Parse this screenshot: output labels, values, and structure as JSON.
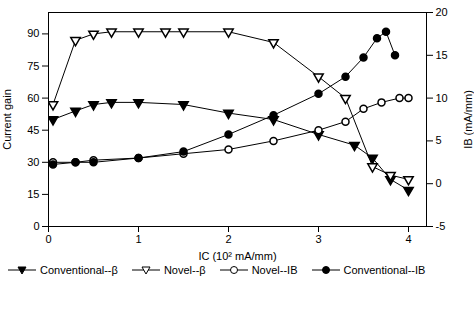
{
  "chart_data": {
    "type": "line",
    "xlabel": "IC (10² mA/mm)",
    "ylabel": "Current gain",
    "y2label": "IB (mA/mm)",
    "xlim": [
      0,
      4.2
    ],
    "xticks": [
      0,
      1,
      2,
      3,
      4
    ],
    "ylim": [
      0,
      100
    ],
    "yticks": [
      0,
      15,
      30,
      45,
      60,
      75,
      90
    ],
    "y2lim": [
      -5,
      20
    ],
    "y2ticks": [
      -5,
      0,
      5,
      10,
      15,
      20
    ],
    "grid": false,
    "legend": "lower left",
    "series": [
      {
        "name": "Conventional--β",
        "color": "black",
        "marker": "filled-triangle-down",
        "x": [
          0.05,
          0.3,
          0.5,
          0.7,
          1.0,
          1.5,
          2.0,
          2.5,
          3.0,
          3.4,
          3.6,
          3.8,
          4.0
        ],
        "values": [
          50,
          54,
          57,
          58,
          58,
          57,
          53,
          50,
          43,
          38,
          32,
          22,
          17
        ]
      },
      {
        "name": "Novel--β",
        "color": "black",
        "marker": "open-triangle-down",
        "x": [
          0.05,
          0.3,
          0.5,
          0.7,
          1.0,
          1.3,
          1.5,
          2.0,
          2.5,
          3.0,
          3.3,
          3.6,
          3.8,
          4.0
        ],
        "values": [
          57,
          87,
          90,
          91,
          91,
          91,
          91,
          91,
          86,
          70,
          60,
          28,
          24,
          22
        ]
      },
      {
        "name": "Novel--IB",
        "color": "black",
        "marker": "open-circle",
        "x": [
          0.05,
          0.3,
          0.5,
          1.0,
          1.5,
          2.0,
          2.5,
          3.0,
          3.3,
          3.5,
          3.7,
          3.9,
          4.0
        ],
        "values": [
          30,
          30,
          31,
          32,
          34,
          36,
          40,
          45,
          49,
          55,
          58,
          60,
          60
        ]
      },
      {
        "name": "Conventional--IB",
        "color": "black",
        "marker": "filled-circle",
        "x": [
          0.05,
          0.3,
          0.5,
          1.0,
          1.5,
          2.0,
          2.5,
          3.0,
          3.3,
          3.5,
          3.65,
          3.75,
          3.85
        ],
        "values": [
          29,
          30,
          30,
          32,
          35,
          43,
          52,
          62,
          70,
          79,
          88,
          91,
          80
        ]
      }
    ]
  }
}
